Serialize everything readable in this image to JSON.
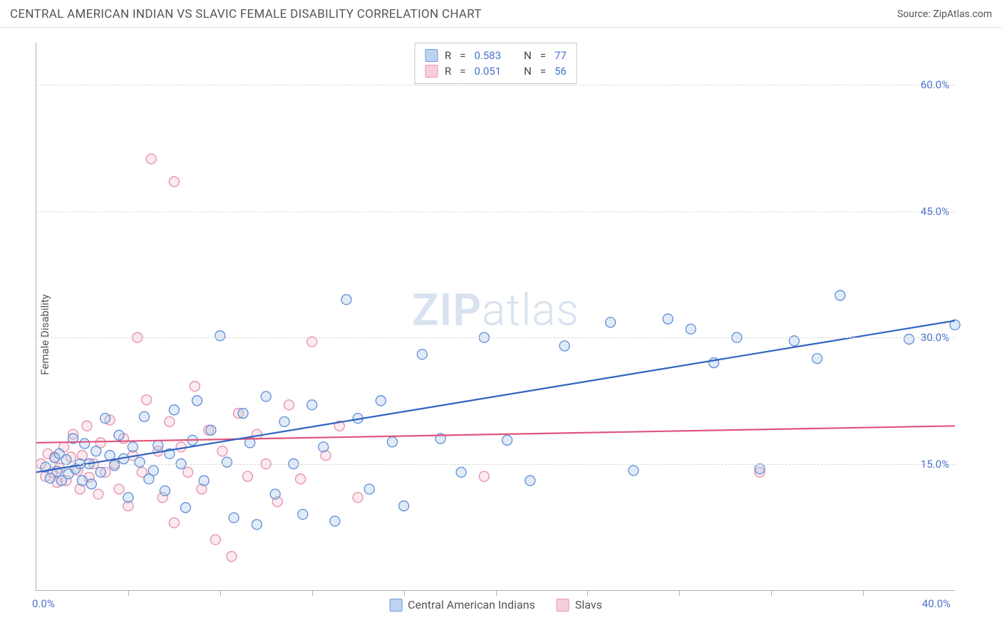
{
  "header": {
    "title": "CENTRAL AMERICAN INDIAN VS SLAVIC FEMALE DISABILITY CORRELATION CHART",
    "source": "Source: ZipAtlas.com"
  },
  "chart": {
    "type": "scatter",
    "ylabel": "Female Disability",
    "watermark": "ZIPatlas",
    "background_color": "#ffffff",
    "grid_color": "#d8d8d8",
    "axis_color": "#b0b0b0",
    "tick_label_color": "#4a74c9",
    "label_color": "#555555",
    "xlim": [
      0,
      40
    ],
    "ylim": [
      0,
      65
    ],
    "x_origin_label": "0.0%",
    "x_max_label": "40.0%",
    "y_ticks": [
      {
        "value": 15,
        "label": "15.0%"
      },
      {
        "value": 30,
        "label": "30.0%"
      },
      {
        "value": 45,
        "label": "45.0%"
      },
      {
        "value": 60,
        "label": "60.0%"
      }
    ],
    "x_tick_positions": [
      4,
      8,
      12,
      16,
      20,
      24,
      28,
      32,
      36
    ],
    "marker_radius": 7,
    "marker_stroke_width": 1.3,
    "marker_fill_opacity": 0.35,
    "line_width": 2.2,
    "series": [
      {
        "id": "cai",
        "name": "Central American Indians",
        "color_stroke": "#5e8fd6",
        "color_fill": "#a9c7ec",
        "line_color": "#2f63c0",
        "swatch_fill": "#bcd4ef",
        "swatch_border": "#6d9bd9",
        "R": "0.583",
        "N": "77",
        "trend": {
          "x1": 0,
          "y1": 14.0,
          "x2": 40,
          "y2": 32.0
        },
        "points": [
          [
            0.4,
            14.6
          ],
          [
            0.6,
            13.3
          ],
          [
            0.8,
            15.7
          ],
          [
            0.9,
            14.1
          ],
          [
            1.0,
            16.2
          ],
          [
            1.1,
            13.0
          ],
          [
            1.3,
            15.5
          ],
          [
            1.4,
            13.8
          ],
          [
            1.6,
            18.0
          ],
          [
            1.7,
            14.4
          ],
          [
            1.9,
            15.0
          ],
          [
            2.0,
            13.0
          ],
          [
            2.1,
            17.4
          ],
          [
            2.3,
            15.0
          ],
          [
            2.4,
            12.6
          ],
          [
            2.6,
            16.5
          ],
          [
            2.8,
            14.0
          ],
          [
            3.0,
            20.4
          ],
          [
            3.2,
            16.0
          ],
          [
            3.4,
            14.8
          ],
          [
            3.6,
            18.4
          ],
          [
            3.8,
            15.6
          ],
          [
            4.0,
            11.0
          ],
          [
            4.2,
            17.0
          ],
          [
            4.5,
            15.2
          ],
          [
            4.7,
            20.6
          ],
          [
            4.9,
            13.2
          ],
          [
            5.1,
            14.2
          ],
          [
            5.3,
            17.2
          ],
          [
            5.6,
            11.8
          ],
          [
            5.8,
            16.2
          ],
          [
            6.0,
            21.4
          ],
          [
            6.3,
            15.0
          ],
          [
            6.5,
            9.8
          ],
          [
            6.8,
            17.8
          ],
          [
            7.0,
            22.5
          ],
          [
            7.3,
            13.0
          ],
          [
            7.6,
            19.0
          ],
          [
            8.0,
            30.2
          ],
          [
            8.3,
            15.2
          ],
          [
            8.6,
            8.6
          ],
          [
            9.0,
            21.0
          ],
          [
            9.3,
            17.5
          ],
          [
            9.6,
            7.8
          ],
          [
            10.0,
            23.0
          ],
          [
            10.4,
            11.4
          ],
          [
            10.8,
            20.0
          ],
          [
            11.2,
            15.0
          ],
          [
            11.6,
            9.0
          ],
          [
            12.0,
            22.0
          ],
          [
            12.5,
            17.0
          ],
          [
            13.0,
            8.2
          ],
          [
            13.5,
            34.5
          ],
          [
            14.0,
            20.4
          ],
          [
            14.5,
            12.0
          ],
          [
            15.0,
            22.5
          ],
          [
            15.5,
            17.6
          ],
          [
            16.0,
            10.0
          ],
          [
            16.8,
            28.0
          ],
          [
            17.6,
            18.0
          ],
          [
            18.5,
            14.0
          ],
          [
            19.5,
            30.0
          ],
          [
            20.5,
            17.8
          ],
          [
            21.5,
            13.0
          ],
          [
            23.0,
            29.0
          ],
          [
            25.0,
            31.8
          ],
          [
            26.0,
            14.2
          ],
          [
            27.5,
            32.2
          ],
          [
            28.5,
            31.0
          ],
          [
            29.5,
            27.0
          ],
          [
            30.5,
            30.0
          ],
          [
            31.5,
            14.4
          ],
          [
            33.0,
            29.6
          ],
          [
            34.0,
            27.5
          ],
          [
            35.0,
            35.0
          ],
          [
            38.0,
            29.8
          ],
          [
            40.0,
            31.5
          ]
        ]
      },
      {
        "id": "slavs",
        "name": "Slavs",
        "color_stroke": "#e58fa8",
        "color_fill": "#f3c2d0",
        "line_color": "#e0557c",
        "swatch_fill": "#f6cfda",
        "swatch_border": "#e995af",
        "R": "0.051",
        "N": "56",
        "trend": {
          "x1": 0,
          "y1": 17.5,
          "x2": 40,
          "y2": 19.5
        },
        "points": [
          [
            0.2,
            15.0
          ],
          [
            0.4,
            13.5
          ],
          [
            0.5,
            16.2
          ],
          [
            0.7,
            14.0
          ],
          [
            0.8,
            15.8
          ],
          [
            0.9,
            12.8
          ],
          [
            1.0,
            14.5
          ],
          [
            1.2,
            17.0
          ],
          [
            1.3,
            13.0
          ],
          [
            1.5,
            15.8
          ],
          [
            1.6,
            18.5
          ],
          [
            1.8,
            14.2
          ],
          [
            1.9,
            12.0
          ],
          [
            2.0,
            16.0
          ],
          [
            2.2,
            19.5
          ],
          [
            2.3,
            13.4
          ],
          [
            2.5,
            15.0
          ],
          [
            2.7,
            11.4
          ],
          [
            2.8,
            17.5
          ],
          [
            3.0,
            14.0
          ],
          [
            3.2,
            20.2
          ],
          [
            3.4,
            15.0
          ],
          [
            3.6,
            12.0
          ],
          [
            3.8,
            18.0
          ],
          [
            4.0,
            10.0
          ],
          [
            4.2,
            16.0
          ],
          [
            4.4,
            30.0
          ],
          [
            4.6,
            14.0
          ],
          [
            4.8,
            22.6
          ],
          [
            5.0,
            51.2
          ],
          [
            5.3,
            16.5
          ],
          [
            5.5,
            11.0
          ],
          [
            5.8,
            20.0
          ],
          [
            6.0,
            8.0
          ],
          [
            6.0,
            48.5
          ],
          [
            6.3,
            17.0
          ],
          [
            6.6,
            14.0
          ],
          [
            6.9,
            24.2
          ],
          [
            7.2,
            12.0
          ],
          [
            7.5,
            19.0
          ],
          [
            7.8,
            6.0
          ],
          [
            8.1,
            16.5
          ],
          [
            8.5,
            4.0
          ],
          [
            8.8,
            21.0
          ],
          [
            9.2,
            13.5
          ],
          [
            9.6,
            18.5
          ],
          [
            10.0,
            15.0
          ],
          [
            10.5,
            10.5
          ],
          [
            11.0,
            22.0
          ],
          [
            11.5,
            13.2
          ],
          [
            12.0,
            29.5
          ],
          [
            12.6,
            16.0
          ],
          [
            13.2,
            19.5
          ],
          [
            14.0,
            11.0
          ],
          [
            19.5,
            13.5
          ],
          [
            31.5,
            14.0
          ]
        ]
      }
    ],
    "legend_top": {
      "r_label": "R",
      "n_label": "N",
      "eq": "="
    }
  }
}
